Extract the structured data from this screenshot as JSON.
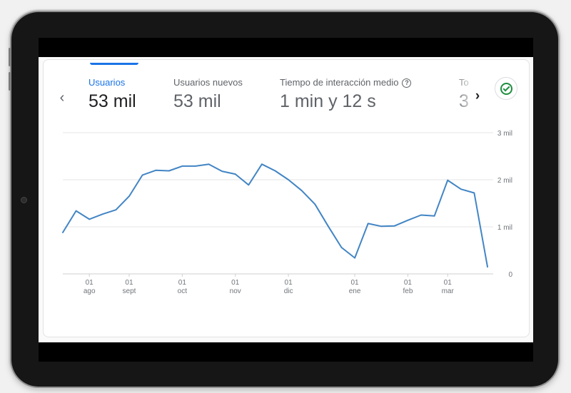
{
  "metrics": [
    {
      "label": "Usuarios",
      "value": "53 mil",
      "active": true
    },
    {
      "label": "Usuarios nuevos",
      "value": "53 mil",
      "active": false
    },
    {
      "label": "Tiempo de interacción medio",
      "value": "1 min y 12 s",
      "active": false,
      "help": true
    },
    {
      "label": "To",
      "value": "3",
      "active": false
    }
  ],
  "colors": {
    "accent": "#1a73e8",
    "line": "#4285c4",
    "success": "#1e8e3e"
  },
  "icons": {
    "prev": "chevron-left-icon",
    "next": "chevron-right-icon",
    "help": "help-circle-icon",
    "status": "check-circle-icon"
  },
  "chart_data": {
    "type": "line",
    "y_ticks": [
      "0",
      "1 mil",
      "2 mil",
      "3 mil"
    ],
    "ylim": [
      0,
      3000
    ],
    "x_ticks": [
      {
        "day": "01",
        "month": "ago",
        "index": 2
      },
      {
        "day": "01",
        "month": "sept",
        "index": 5
      },
      {
        "day": "01",
        "month": "oct",
        "index": 9
      },
      {
        "day": "01",
        "month": "nov",
        "index": 13
      },
      {
        "day": "01",
        "month": "dic",
        "index": 17
      },
      {
        "day": "01",
        "month": "ene",
        "index": 22
      },
      {
        "day": "01",
        "month": "feb",
        "index": 26
      },
      {
        "day": "01",
        "month": "mar",
        "index": 29
      }
    ],
    "grid": true,
    "series": [
      {
        "values": [
          880,
          1340,
          1160,
          1270,
          1360,
          1650,
          2100,
          2200,
          2190,
          2290,
          2290,
          2330,
          2180,
          2120,
          1890,
          2330,
          2190,
          2000,
          1770,
          1480,
          1010,
          560,
          340,
          1070,
          1010,
          1020,
          1140,
          1250,
          1230,
          1990,
          1800,
          1720,
          150
        ]
      }
    ]
  }
}
